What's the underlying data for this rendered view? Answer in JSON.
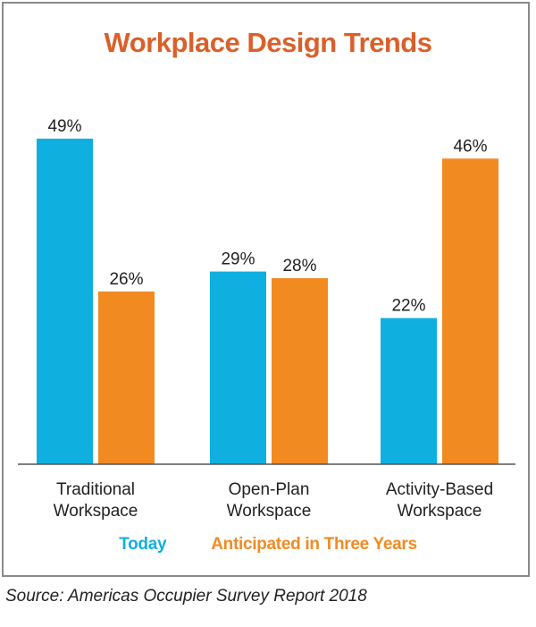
{
  "chart_data": {
    "type": "bar",
    "title": "Workplace Design Trends",
    "categories": [
      "Traditional Workspace",
      "Open-Plan Workspace",
      "Activity-Based Workspace"
    ],
    "category_lines": [
      [
        "Traditional",
        "Workspace"
      ],
      [
        "Open-Plan",
        "Workspace"
      ],
      [
        "Activity-Based",
        "Workspace"
      ]
    ],
    "series": [
      {
        "name": "Today",
        "values": [
          49,
          29,
          22
        ],
        "labels": [
          "49%",
          "29%",
          "22%"
        ]
      },
      {
        "name": "Anticipated in Three Years",
        "values": [
          26,
          28,
          46
        ],
        "labels": [
          "26%",
          "28%",
          "46%"
        ]
      }
    ],
    "ylim": [
      0,
      49
    ],
    "grid": false,
    "legend_position": "bottom-center"
  },
  "colors": {
    "title": "#d9602a",
    "today": "#0fb0e0",
    "anticipated": "#f28a22",
    "axis": "#555555",
    "text": "#222222"
  },
  "source": "Source: Americas Occupier Survey Report 2018"
}
